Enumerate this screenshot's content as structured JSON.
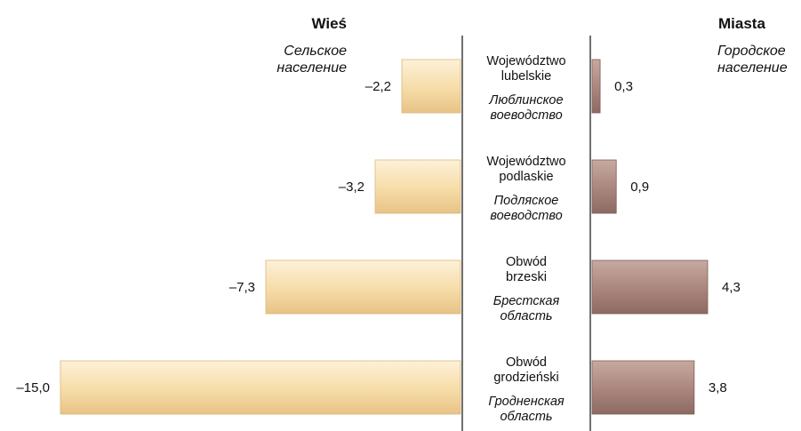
{
  "chart_data": {
    "type": "bar",
    "orientation": "horizontal-diverging",
    "left_header": {
      "title": "Wieś",
      "subtitle": "Сельское население"
    },
    "right_header": {
      "title": "Miasta",
      "subtitle": "Городское население"
    },
    "categories": [
      {
        "pl": "Województwo lubelskie",
        "ru": "Люблинское воеводство"
      },
      {
        "pl": "Województwo podlaskie",
        "ru": "Подляское воеводство"
      },
      {
        "pl": "Obwód brzeski",
        "ru": "Брестская область"
      },
      {
        "pl": "Obwód grodzieński",
        "ru": "Гродненская область"
      }
    ],
    "series": [
      {
        "name": "Wieś",
        "values": [
          -2.2,
          -3.2,
          -7.3,
          -15.0
        ],
        "labels": [
          "–2,2",
          "–3,2",
          "–7,3",
          "–15,0"
        ],
        "color": "#F5D9A6"
      },
      {
        "name": "Miasta",
        "values": [
          0.3,
          0.9,
          4.3,
          3.8
        ],
        "labels": [
          "0,3",
          "0,9",
          "4,3",
          "3,8"
        ],
        "color": "#A9857C"
      }
    ],
    "grid": false,
    "legend": "none"
  }
}
